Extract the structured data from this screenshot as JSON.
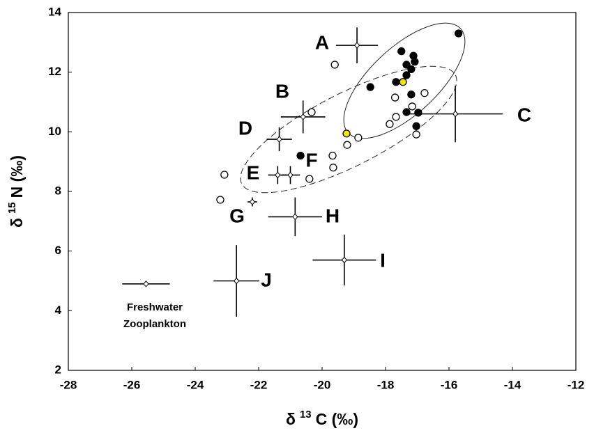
{
  "chart_data": {
    "type": "scatter",
    "xlim": [
      -28,
      -12
    ],
    "ylim": [
      2,
      14
    ],
    "xticks": [
      -28,
      -26,
      -24,
      -22,
      -20,
      -18,
      -16,
      -14,
      -12
    ],
    "yticks": [
      2,
      4,
      6,
      8,
      10,
      12,
      14
    ],
    "x_label": [
      "δ",
      "13",
      "C (‰)"
    ],
    "y_label": [
      "δ",
      "15",
      "N (‰)"
    ],
    "series": [
      {
        "type": "errorbar",
        "color": "#000",
        "x": [
          -18.9,
          -20.6,
          -15.8,
          -21.35,
          -21.4,
          -21.0,
          -22.2,
          -20.85,
          -19.3,
          -22.7,
          -25.55
        ],
        "y": [
          12.9,
          10.5,
          10.6,
          9.75,
          8.55,
          8.55,
          7.65,
          7.15,
          5.7,
          5.0,
          4.9
        ],
        "xerr": [
          0.66,
          0.7,
          1.5,
          0.4,
          0.3,
          0.3,
          0.15,
          0.85,
          1.0,
          0.72,
          0.75
        ],
        "yerr": [
          0.6,
          0.55,
          0.95,
          0.4,
          0.3,
          0.3,
          0.15,
          0.65,
          0.85,
          1.2,
          0.05
        ]
      },
      {
        "type": "points",
        "color": "#000",
        "fill": true,
        "x": [
          -15.7,
          -17.5,
          -17.12,
          -17.08,
          -17.34,
          -17.19,
          -17.34,
          -17.67,
          -18.48,
          -17.19,
          -17.34,
          -16.97,
          -17.03,
          -20.68
        ],
        "y": [
          13.3,
          12.7,
          12.55,
          12.35,
          12.25,
          12.1,
          11.9,
          11.67,
          11.5,
          11.25,
          10.66,
          10.64,
          10.19,
          9.2
        ]
      },
      {
        "type": "points",
        "color": "#f2e600",
        "fill": true,
        "x": [
          -17.45,
          -19.23
        ],
        "y": [
          11.67,
          9.94
        ]
      },
      {
        "type": "points",
        "color": "#000",
        "fill": false,
        "x": [
          -19.6,
          -17.7,
          -16.77,
          -17.16,
          -17.67,
          -17.87,
          -17.03,
          -20.33,
          -18.86,
          -19.21,
          -19.67,
          -19.65,
          -20.4,
          -23.08,
          -23.21
        ],
        "y": [
          12.25,
          11.15,
          11.3,
          10.85,
          10.5,
          10.26,
          9.91,
          10.66,
          9.8,
          9.56,
          9.2,
          8.8,
          8.42,
          8.56,
          7.72
        ]
      }
    ],
    "annotations": [
      "A",
      "B",
      "C",
      "D",
      "E",
      "F",
      "G",
      "H",
      "I",
      "J",
      "Freshwater",
      "Zooplankton"
    ]
  }
}
